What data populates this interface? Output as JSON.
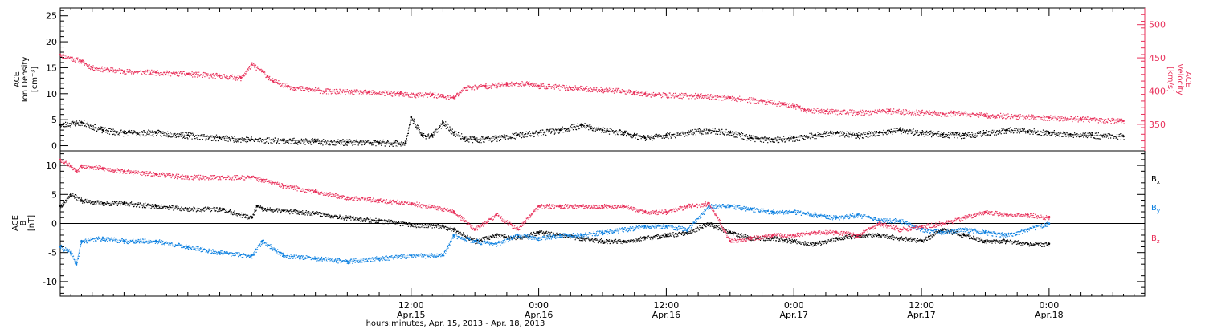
{
  "colors": {
    "black": "#000000",
    "pink": "#e8305a",
    "blue": "#0a7fe0"
  },
  "chart_data": [
    {
      "type": "scatter",
      "panel": "top",
      "ylabel_left": [
        "ACE",
        "Ion Density",
        "[cm⁻³]"
      ],
      "ylabel_right": [
        "ACE",
        "Velocity",
        "[km/s]"
      ],
      "ylim_left": [
        -1,
        26.5
      ],
      "ylim_right": [
        310,
        525
      ],
      "yticks_left": [
        "0",
        "5",
        "10",
        "15",
        "20",
        "25"
      ],
      "yticks_left_values": [
        0,
        5,
        10,
        15,
        20,
        25
      ],
      "yticks_right": [
        "350",
        "400",
        "450",
        "500"
      ],
      "yticks_right_values": [
        350,
        400,
        450,
        500
      ],
      "xlim_hours": [
        -21,
        81
      ],
      "series": [
        {
          "color": "pink",
          "axis": "right",
          "x_hours": [
            -21,
            -19,
            -18,
            -15,
            -12,
            -9,
            -6,
            -4,
            -3,
            -2,
            -1.5,
            -1,
            1,
            4,
            8,
            11,
            12.5,
            14,
            15,
            16,
            17,
            19,
            21,
            23,
            24,
            27,
            30,
            32,
            33,
            34,
            35,
            36,
            39,
            42,
            45,
            47,
            48,
            48.5,
            49,
            51,
            54,
            57,
            60,
            62,
            63,
            66,
            69,
            72,
            75,
            78,
            79
          ],
          "y": [
            455,
            445,
            435,
            430,
            428,
            426,
            423,
            420,
            440,
            430,
            422,
            415,
            405,
            400,
            398,
            396,
            394,
            395,
            392,
            390,
            405,
            408,
            410,
            412,
            408,
            405,
            402,
            400,
            398,
            396,
            395,
            394,
            393,
            390,
            385,
            380,
            378,
            376,
            372,
            370,
            368,
            370,
            368,
            366,
            367,
            364,
            362,
            360,
            358,
            356,
            355
          ]
        },
        {
          "color": "black",
          "axis": "left",
          "x_hours": [
            -21,
            -19,
            -17,
            -15,
            -12,
            -9,
            -6,
            -3,
            0,
            3,
            6,
            9,
            11.5,
            12,
            13,
            14,
            15,
            16,
            17,
            18,
            20,
            22,
            24,
            26,
            28,
            30,
            32,
            33,
            34,
            36,
            38,
            40,
            42,
            44,
            46,
            48,
            50,
            52,
            54,
            56,
            58,
            60,
            62,
            64,
            66,
            68,
            70,
            72,
            74,
            76,
            79
          ],
          "y": [
            4,
            4.5,
            3,
            2.5,
            2.5,
            2,
            1.5,
            1.2,
            1,
            0.8,
            0.7,
            0.6,
            0.5,
            5.5,
            2,
            2,
            4.5,
            2.5,
            1.5,
            1.2,
            1.5,
            2,
            2.5,
            3,
            4,
            3,
            2.5,
            2,
            1.5,
            2,
            2.5,
            3,
            2.5,
            1.5,
            1.2,
            1.5,
            2,
            2.5,
            2,
            2.5,
            3,
            2.5,
            2.2,
            2,
            2.5,
            3,
            2.8,
            2.5,
            2.2,
            2,
            1.8
          ]
        }
      ]
    },
    {
      "type": "scatter",
      "panel": "bottom",
      "ylabel_left": [
        "ACE",
        "B",
        "[nT]"
      ],
      "ylim": [
        -12.5,
        12.5
      ],
      "yticks": [
        "-10",
        "-5",
        "0",
        "5",
        "10"
      ],
      "yticks_values": [
        -10,
        -5,
        0,
        5,
        10
      ],
      "zero_line": true,
      "xlim_hours": [
        -21,
        81
      ],
      "xticks": [
        {
          "hours": 12,
          "label": "12:00",
          "sub": "Apr.15"
        },
        {
          "hours": 24,
          "label": "0:00",
          "sub": "Apr.16"
        },
        {
          "hours": 36,
          "label": "12:00",
          "sub": "Apr.16"
        },
        {
          "hours": 48,
          "label": "0:00",
          "sub": "Apr.17"
        },
        {
          "hours": 60,
          "label": "12:00",
          "sub": "Apr.17"
        },
        {
          "hours": 72,
          "label": "0:00",
          "sub": "Apr.18"
        }
      ],
      "xlabel": "hours:minutes, Apr. 15, 2013 - Apr. 18, 2013",
      "legend": [
        {
          "text": "B",
          "sub": "x",
          "color": "black"
        },
        {
          "text": "B",
          "sub": "y",
          "color": "blue"
        },
        {
          "text": "B",
          "sub": "z",
          "color": "pink"
        }
      ],
      "series": [
        {
          "name": "Bx",
          "color": "black",
          "x_hours": [
            -21,
            -20,
            -19,
            -17,
            -15,
            -12,
            -9,
            -6,
            -3,
            -2.5,
            -2,
            0,
            3,
            6,
            9,
            12,
            15,
            16,
            18,
            20,
            22,
            24,
            26,
            28,
            30,
            32,
            34,
            36,
            38,
            40,
            42,
            44,
            46,
            48,
            50,
            52,
            54,
            56,
            58,
            60,
            62,
            64,
            66,
            68,
            70,
            72
          ],
          "y": [
            3,
            5,
            4,
            3.5,
            3.5,
            3,
            2.5,
            2.5,
            1,
            3,
            2.5,
            2.2,
            1.8,
            1,
            0.5,
            -0.2,
            -0.5,
            -1,
            -3,
            -2,
            -2.5,
            -1.5,
            -2,
            -2.5,
            -3,
            -3,
            -2.5,
            -2,
            -1.5,
            0,
            -1.5,
            -2.5,
            -2.5,
            -3,
            -3.5,
            -2.5,
            -2,
            -2,
            -2.5,
            -3,
            -1,
            -2,
            -3,
            -3,
            -3.5,
            -3.5
          ]
        },
        {
          "name": "By",
          "color": "blue",
          "x_hours": [
            -21,
            -20,
            -19.5,
            -19,
            -17,
            -15,
            -12,
            -9,
            -6,
            -3,
            -2,
            0,
            3,
            6,
            9,
            12,
            15,
            16,
            18,
            20,
            22,
            24,
            26,
            28,
            30,
            32,
            34,
            36,
            38,
            40,
            42,
            44,
            46,
            48,
            50,
            52,
            54,
            56,
            58,
            60,
            62,
            64,
            66,
            68,
            70,
            72
          ],
          "y": [
            -4,
            -5,
            -7,
            -3,
            -2.5,
            -3,
            -3,
            -4,
            -5,
            -5.5,
            -3,
            -5.5,
            -6,
            -6.5,
            -6,
            -5.5,
            -5.5,
            -2,
            -3,
            -3.5,
            -2,
            -2.5,
            -2,
            -2,
            -1.5,
            -1,
            -0.5,
            -0.5,
            -1,
            3,
            3,
            2.5,
            2,
            2,
            1.5,
            1,
            1.5,
            0.5,
            0.5,
            -1,
            -1.5,
            -1,
            -1.5,
            -2,
            -1,
            0
          ]
        },
        {
          "name": "Bz",
          "color": "pink",
          "x_hours": [
            -21,
            -20,
            -19.5,
            -19,
            -17,
            -15,
            -12,
            -9,
            -6,
            -3,
            -2,
            0,
            3,
            6,
            9,
            12,
            15,
            16,
            18,
            20,
            22,
            24,
            26,
            28,
            30,
            32,
            34,
            36,
            38,
            40,
            42,
            44,
            46,
            48,
            50,
            52,
            54,
            56,
            58,
            60,
            62,
            64,
            66,
            68,
            70,
            72
          ],
          "y": [
            11,
            10,
            9,
            10,
            9.5,
            9,
            8.5,
            8,
            8,
            8,
            7.5,
            6.5,
            5.5,
            4.5,
            4,
            3.5,
            2.5,
            2,
            -1,
            1.5,
            -1,
            3,
            3,
            3,
            3,
            3,
            2,
            2,
            3,
            3.5,
            -3,
            -2.5,
            -2,
            -2,
            -1.5,
            -1.5,
            -2,
            0,
            -1,
            -0.5,
            0,
            1,
            2,
            1.5,
            1.5,
            1
          ]
        }
      ]
    }
  ]
}
